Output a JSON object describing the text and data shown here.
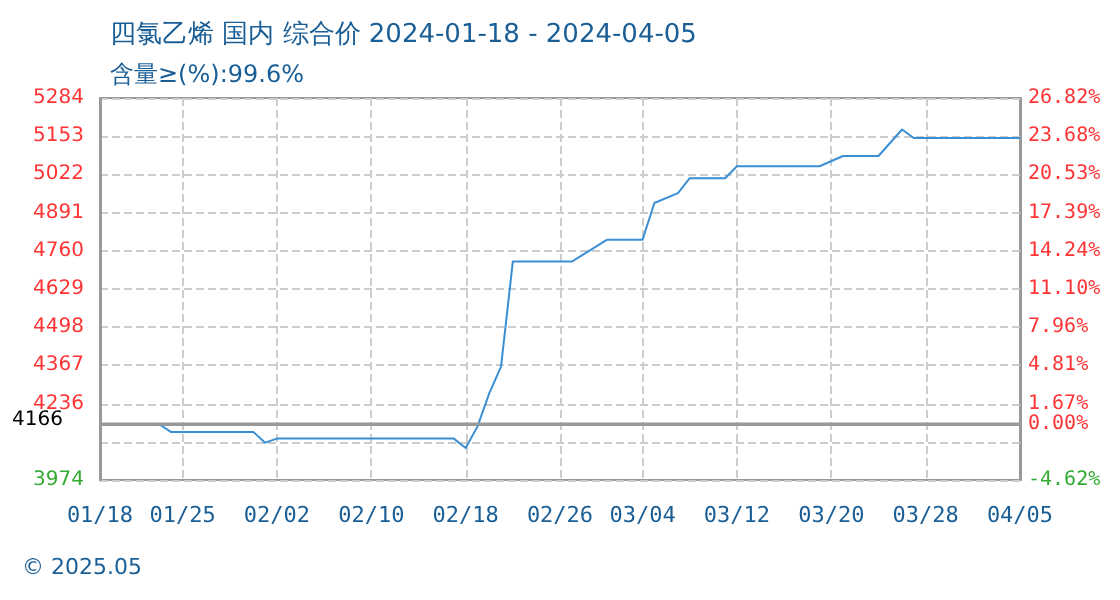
{
  "chart_data": {
    "type": "line",
    "title": "四氯乙烯 国内 综合价 2024-01-18 - 2024-04-05",
    "subtitle": "含量≥(%):99.6%",
    "annotations": [
      "© 2025.05"
    ],
    "x": [
      "2024-01-18",
      "2024-01-23",
      "2024-01-24",
      "2024-01-31",
      "2024-02-01",
      "2024-02-02",
      "2024-02-17",
      "2024-02-18",
      "2024-02-19",
      "2024-02-20",
      "2024-02-21",
      "2024-02-22",
      "2024-02-27",
      "2024-03-01",
      "2024-03-04",
      "2024-03-05",
      "2024-03-07",
      "2024-03-08",
      "2024-03-11",
      "2024-03-12",
      "2024-03-19",
      "2024-03-21",
      "2024-03-24",
      "2024-03-26",
      "2024-03-27",
      "2024-04-05"
    ],
    "series": [
      {
        "color": "#3a8fd4",
        "values": [
          4166,
          4166,
          4139,
          4139,
          4102,
          4116,
          4116,
          4084,
          4157,
          4271,
          4363,
          4723,
          4723,
          4798,
          4798,
          4924,
          4958,
          5009,
          5009,
          5050,
          5050,
          5085,
          5085,
          5176,
          5147,
          5147
        ]
      }
    ],
    "xlim": [
      "2024-01-18",
      "2024-04-05"
    ],
    "xticks": [
      {
        "value": "2024-01-18",
        "label": "01/18"
      },
      {
        "value": "2024-01-25",
        "label": "01/25"
      },
      {
        "value": "2024-02-02",
        "label": "02/02"
      },
      {
        "value": "2024-02-10",
        "label": "02/10"
      },
      {
        "value": "2024-02-18",
        "label": "02/18"
      },
      {
        "value": "2024-02-26",
        "label": "02/26"
      },
      {
        "value": "2024-03-04",
        "label": "03/04"
      },
      {
        "value": "2024-03-12",
        "label": "03/12"
      },
      {
        "value": "2024-03-20",
        "label": "03/20"
      },
      {
        "value": "2024-03-28",
        "label": "03/28"
      },
      {
        "value": "2024-04-05",
        "label": "04/05"
      }
    ],
    "ylim": [
      3974,
      5284
    ],
    "yticks": [
      3974,
      {
        "value": 4105,
        "label": null
      },
      4236,
      4367,
      4498,
      4629,
      4760,
      4891,
      5022,
      5153,
      5284
    ],
    "y2lim": [
      -4.62,
      26.82
    ],
    "y2ticks": [
      {
        "value": -4.62,
        "label": "-4.62%"
      },
      {
        "value": -1.47,
        "label": null
      },
      {
        "value": 0,
        "label": "0.00%"
      },
      {
        "value": 1.67,
        "label": "1.67%"
      },
      {
        "value": 4.81,
        "label": "4.81%"
      },
      {
        "value": 7.96,
        "label": "7.96%"
      },
      {
        "value": 11.1,
        "label": "11.10%"
      },
      {
        "value": 14.24,
        "label": "14.24%"
      },
      {
        "value": 17.39,
        "label": "17.39%"
      },
      {
        "value": 20.53,
        "label": "20.53%"
      },
      {
        "value": 23.68,
        "label": "23.68%"
      },
      {
        "value": 26.82,
        "label": "26.82%"
      }
    ],
    "ref_lines": [
      {
        "axis": "y",
        "value": 4166,
        "label": "4166",
        "color": "#999999"
      }
    ],
    "grid": true,
    "marker": "none",
    "line_style": "solid"
  }
}
